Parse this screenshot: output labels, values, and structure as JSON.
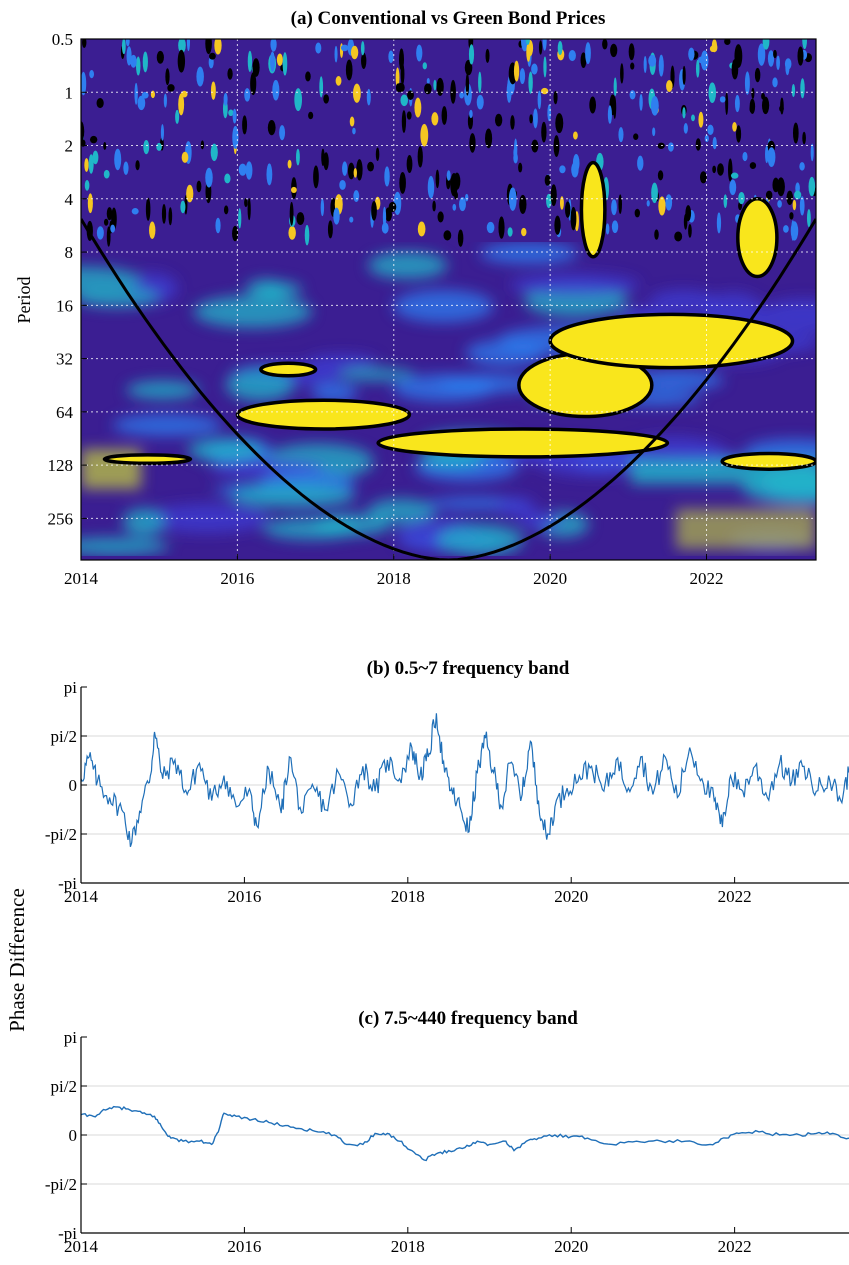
{
  "figure": {
    "shared_ylabel": "Phase Difference",
    "colors": {
      "series": "#1f6fb8",
      "grid": "#d9d9d9",
      "contour": "#000000"
    }
  },
  "chart_data": [
    {
      "type": "heatmap",
      "title": "(a)  Conventional vs Green Bond Prices",
      "ylabel": "Period",
      "xlabel": "",
      "x_ticks": [
        "2014",
        "2016",
        "2018",
        "2020",
        "2022"
      ],
      "x_tick_values": [
        2014,
        2016,
        2018,
        2020,
        2022
      ],
      "xlim": [
        2014,
        2023.4
      ],
      "y_ticks": [
        "0.5",
        "1",
        "2",
        "4",
        "8",
        "16",
        "32",
        "64",
        "128",
        "256"
      ],
      "y_tick_values": [
        0.5,
        1,
        2,
        4,
        8,
        16,
        32,
        64,
        128,
        256
      ],
      "y_scale": "log2",
      "ylim": [
        0.5,
        440
      ],
      "y_reversed": true,
      "grid": true,
      "colormap": [
        "#3b1e92",
        "#3f3fd6",
        "#2f7ff0",
        "#20b6c8",
        "#55cc72",
        "#c8d23a",
        "#f5c722",
        "#f9e61c"
      ],
      "cone_of_influence": true,
      "cone_apex_x": 2018.7,
      "significant_regions": [
        {
          "x": [
            2016.0,
            2018.2
          ],
          "period": [
            55,
            80
          ]
        },
        {
          "x": [
            2017.8,
            2021.5
          ],
          "period": [
            80,
            115
          ]
        },
        {
          "x": [
            2019.6,
            2021.3
          ],
          "period": [
            30,
            68
          ]
        },
        {
          "x": [
            2020.0,
            2023.1
          ],
          "period": [
            18,
            36
          ]
        },
        {
          "x": [
            2016.3,
            2017.0
          ],
          "period": [
            34,
            40
          ]
        },
        {
          "x": [
            2014.3,
            2015.4
          ],
          "period": [
            112,
            125
          ]
        },
        {
          "x": [
            2022.2,
            2023.4
          ],
          "period": [
            110,
            135
          ]
        },
        {
          "x": [
            2020.4,
            2020.7
          ],
          "period": [
            2.5,
            8.5
          ]
        },
        {
          "x": [
            2022.4,
            2022.9
          ],
          "period": [
            4,
            11
          ]
        }
      ]
    },
    {
      "type": "line",
      "title": "(b)  0.5~7 frequency band",
      "ylabel": "",
      "xlabel": "",
      "x_ticks": [
        "2014",
        "2016",
        "2018",
        "2020",
        "2022"
      ],
      "x_tick_values": [
        2014,
        2016,
        2018,
        2020,
        2022
      ],
      "xlim": [
        2014,
        2023.4
      ],
      "y_ticks": [
        "pi",
        "pi/2",
        "0",
        "-pi/2",
        "-pi"
      ],
      "y_tick_values": [
        3.1416,
        1.5708,
        0,
        -1.5708,
        -3.1416
      ],
      "ylim": [
        -3.1416,
        3.1416
      ],
      "grid": "horizontal",
      "series": [
        {
          "color": "#1f6fb8",
          "points": [
            [
              2014.0,
              0.2
            ],
            [
              2014.1,
              0.9
            ],
            [
              2014.2,
              0.1
            ],
            [
              2014.35,
              -0.4
            ],
            [
              2014.5,
              -0.8
            ],
            [
              2014.62,
              -1.85
            ],
            [
              2014.75,
              -0.5
            ],
            [
              2014.85,
              0.3
            ],
            [
              2014.9,
              1.7
            ],
            [
              2015.0,
              0.2
            ],
            [
              2015.15,
              0.8
            ],
            [
              2015.3,
              -0.3
            ],
            [
              2015.45,
              0.7
            ],
            [
              2015.6,
              -0.5
            ],
            [
              2015.75,
              0.3
            ],
            [
              2015.9,
              -0.7
            ],
            [
              2016.05,
              -0.2
            ],
            [
              2016.15,
              -1.3
            ],
            [
              2016.3,
              0.5
            ],
            [
              2016.45,
              -0.9
            ],
            [
              2016.55,
              0.9
            ],
            [
              2016.7,
              -0.9
            ],
            [
              2016.85,
              -0.1
            ],
            [
              2017.0,
              -0.8
            ],
            [
              2017.15,
              0.4
            ],
            [
              2017.3,
              -0.6
            ],
            [
              2017.45,
              0.6
            ],
            [
              2017.6,
              -0.2
            ],
            [
              2017.75,
              0.8
            ],
            [
              2017.9,
              0.2
            ],
            [
              2018.05,
              1.2
            ],
            [
              2018.15,
              0.3
            ],
            [
              2018.25,
              0.9
            ],
            [
              2018.35,
              2.3
            ],
            [
              2018.45,
              0.4
            ],
            [
              2018.55,
              -0.3
            ],
            [
              2018.65,
              -0.8
            ],
            [
              2018.75,
              -1.5
            ],
            [
              2018.85,
              0.4
            ],
            [
              2018.95,
              1.5
            ],
            [
              2019.05,
              0.4
            ],
            [
              2019.15,
              -0.7
            ],
            [
              2019.25,
              0.7
            ],
            [
              2019.4,
              -0.3
            ],
            [
              2019.5,
              1.4
            ],
            [
              2019.6,
              -0.5
            ],
            [
              2019.7,
              -1.75
            ],
            [
              2019.8,
              -0.7
            ],
            [
              2019.95,
              -0.1
            ],
            [
              2020.1,
              0.3
            ],
            [
              2020.25,
              0.6
            ],
            [
              2020.4,
              -0.2
            ],
            [
              2020.55,
              0.8
            ],
            [
              2020.7,
              -0.1
            ],
            [
              2020.85,
              0.9
            ],
            [
              2021.0,
              -0.3
            ],
            [
              2021.15,
              0.9
            ],
            [
              2021.3,
              -0.4
            ],
            [
              2021.45,
              1.2
            ],
            [
              2021.6,
              0.2
            ],
            [
              2021.75,
              -0.5
            ],
            [
              2021.85,
              -1.35
            ],
            [
              2021.95,
              0.3
            ],
            [
              2022.1,
              -0.2
            ],
            [
              2022.25,
              0.6
            ],
            [
              2022.4,
              -0.4
            ],
            [
              2022.55,
              0.7
            ],
            [
              2022.7,
              0.1
            ],
            [
              2022.85,
              0.6
            ],
            [
              2023.0,
              -0.2
            ],
            [
              2023.15,
              0.3
            ],
            [
              2023.3,
              -0.5
            ],
            [
              2023.4,
              0.4
            ]
          ]
        }
      ]
    },
    {
      "type": "line",
      "title": "(c)  7.5~440 frequency band",
      "ylabel": "",
      "xlabel": "",
      "x_ticks": [
        "2014",
        "2016",
        "2018",
        "2020",
        "2022"
      ],
      "x_tick_values": [
        2014,
        2016,
        2018,
        2020,
        2022
      ],
      "xlim": [
        2014,
        2023.4
      ],
      "y_ticks": [
        "pi",
        "pi/2",
        "0",
        "-pi/2",
        "-pi"
      ],
      "y_tick_values": [
        3.1416,
        1.5708,
        0,
        -1.5708,
        -3.1416
      ],
      "ylim": [
        -3.1416,
        3.1416
      ],
      "grid": "horizontal",
      "series": [
        {
          "color": "#1f6fb8",
          "points": [
            [
              2014.0,
              0.65
            ],
            [
              2014.15,
              0.6
            ],
            [
              2014.3,
              0.8
            ],
            [
              2014.45,
              0.9
            ],
            [
              2014.6,
              0.8
            ],
            [
              2014.75,
              0.7
            ],
            [
              2014.9,
              0.6
            ],
            [
              2015.0,
              0.2
            ],
            [
              2015.1,
              -0.1
            ],
            [
              2015.25,
              -0.2
            ],
            [
              2015.45,
              -0.2
            ],
            [
              2015.6,
              -0.3
            ],
            [
              2015.68,
              0.1
            ],
            [
              2015.75,
              0.7
            ],
            [
              2015.9,
              0.6
            ],
            [
              2016.1,
              0.5
            ],
            [
              2016.3,
              0.4
            ],
            [
              2016.5,
              0.3
            ],
            [
              2016.7,
              0.2
            ],
            [
              2016.9,
              0.1
            ],
            [
              2017.1,
              0.0
            ],
            [
              2017.25,
              -0.3
            ],
            [
              2017.45,
              -0.3
            ],
            [
              2017.6,
              0.05
            ],
            [
              2017.75,
              0.05
            ],
            [
              2017.9,
              -0.2
            ],
            [
              2018.05,
              -0.5
            ],
            [
              2018.2,
              -0.8
            ],
            [
              2018.35,
              -0.6
            ],
            [
              2018.5,
              -0.5
            ],
            [
              2018.7,
              -0.4
            ],
            [
              2018.85,
              -0.2
            ],
            [
              2019.0,
              -0.3
            ],
            [
              2019.2,
              -0.2
            ],
            [
              2019.3,
              -0.5
            ],
            [
              2019.45,
              -0.2
            ],
            [
              2019.6,
              -0.1
            ],
            [
              2019.8,
              0.0
            ],
            [
              2020.0,
              -0.05
            ],
            [
              2020.2,
              -0.1
            ],
            [
              2020.5,
              -0.3
            ],
            [
              2020.8,
              -0.2
            ],
            [
              2021.1,
              -0.2
            ],
            [
              2021.4,
              -0.2
            ],
            [
              2021.7,
              -0.3
            ],
            [
              2021.9,
              -0.1
            ],
            [
              2022.05,
              0.05
            ],
            [
              2022.3,
              0.1
            ],
            [
              2022.55,
              0.0
            ],
            [
              2022.8,
              0.0
            ],
            [
              2023.0,
              0.05
            ],
            [
              2023.2,
              0.05
            ],
            [
              2023.4,
              -0.1
            ]
          ]
        }
      ]
    }
  ]
}
